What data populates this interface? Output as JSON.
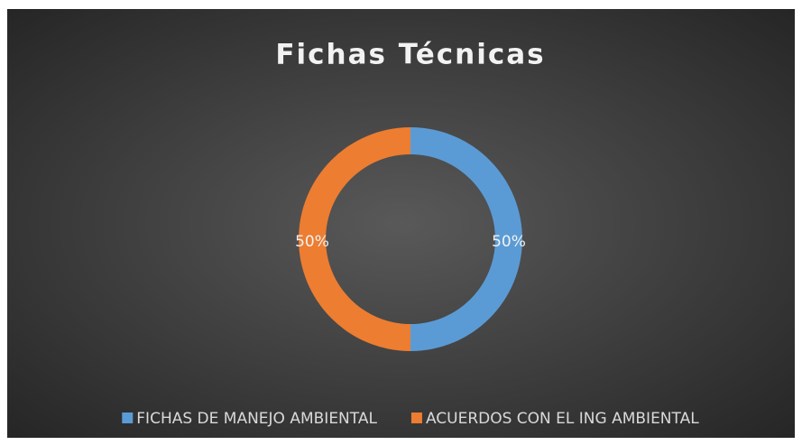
{
  "chart_data": {
    "type": "donut",
    "title": "Fichas Técnicas",
    "categories": [
      "FICHAS DE MANEJO AMBIENTAL",
      "ACUERDOS CON EL ING AMBIENTAL"
    ],
    "values": [
      50,
      50
    ],
    "value_labels": [
      "50%",
      "50%"
    ],
    "colors": [
      "#5b9bd5",
      "#ed7d31"
    ],
    "legend": "bottom"
  }
}
